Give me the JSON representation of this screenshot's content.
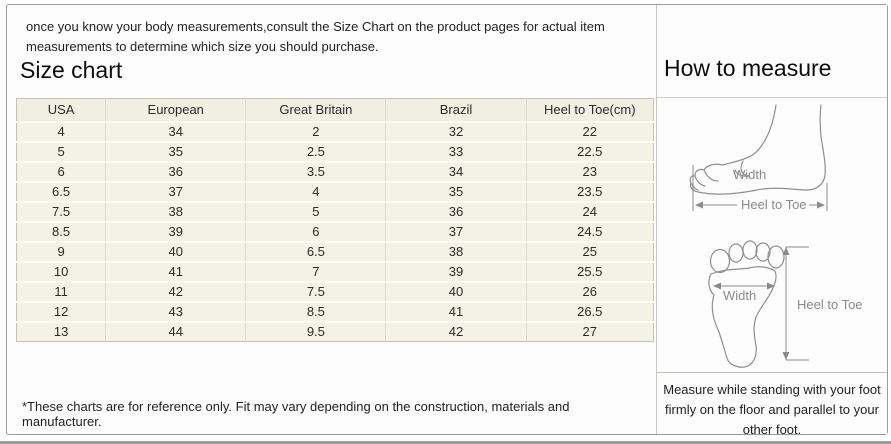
{
  "intro_text": "once you know your body measurements,consult the Size Chart on the product pages for actual item measurements to determine which size you should purchase.",
  "size_chart": {
    "title": "Size chart",
    "columns": [
      "USA",
      "European",
      "Great Britain",
      "Brazil",
      "Heel to Toe(cm)"
    ],
    "rows": [
      [
        "4",
        "34",
        "2",
        "32",
        "22"
      ],
      [
        "5",
        "35",
        "2.5",
        "33",
        "22.5"
      ],
      [
        "6",
        "36",
        "3.5",
        "34",
        "23"
      ],
      [
        "6.5",
        "37",
        "4",
        "35",
        "23.5"
      ],
      [
        "7.5",
        "38",
        "5",
        "36",
        "24"
      ],
      [
        "8.5",
        "39",
        "6",
        "37",
        "24.5"
      ],
      [
        "9",
        "40",
        "6.5",
        "38",
        "25"
      ],
      [
        "10",
        "41",
        "7",
        "39",
        "25.5"
      ],
      [
        "11",
        "42",
        "7.5",
        "40",
        "26"
      ],
      [
        "12",
        "43",
        "8.5",
        "41",
        "26.5"
      ],
      [
        "13",
        "44",
        "9.5",
        "42",
        "27"
      ]
    ],
    "footnote": "*These charts are for reference only. Fit may vary depending on the construction, materials and manufacturer."
  },
  "how_to_measure": {
    "title": "How to measure",
    "side_view": {
      "width_label": "Width",
      "heel_to_toe_label": "Heel to Toe"
    },
    "sole_view": {
      "width_label": "Width",
      "heel_to_toe_label": "Heel to Toe"
    },
    "instructions": "Measure while standing with your foot firmly on the floor and parallel to your other foot."
  },
  "colors": {
    "table_bg": "#f4f2e5",
    "table_border": "#c6c3b2",
    "frame_border": "#9b9b9b",
    "sketch_gray": "#8f8f8f"
  }
}
